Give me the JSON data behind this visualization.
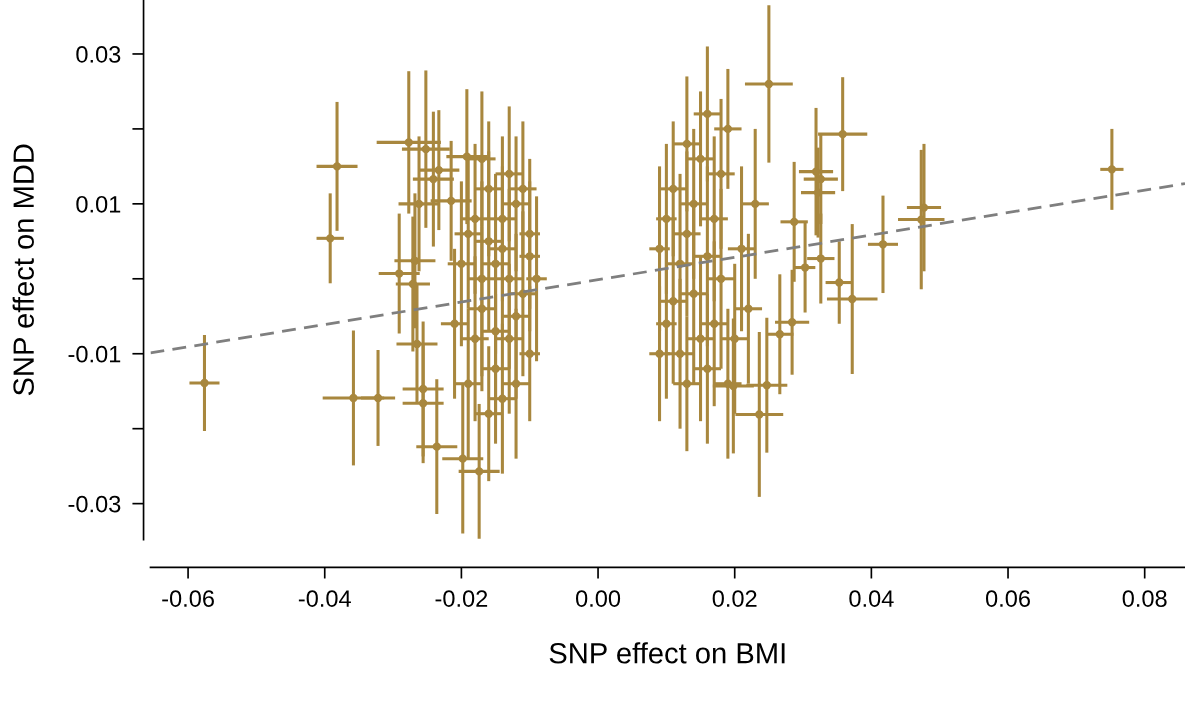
{
  "chart_data": {
    "type": "scatter",
    "xlabel": "SNP effect on BMI",
    "ylabel": "SNP effect on MDD",
    "xlim": [
      -0.0655,
      0.0859
    ],
    "ylim": [
      -0.0348,
      0.0372
    ],
    "xticks": [
      {
        "value": -0.06,
        "label": "-0.06"
      },
      {
        "value": -0.04,
        "label": "-0.04"
      },
      {
        "value": -0.02,
        "label": "-0.02"
      },
      {
        "value": 0.0,
        "label": "0.00"
      },
      {
        "value": 0.02,
        "label": "0.02"
      },
      {
        "value": 0.04,
        "label": "0.04"
      },
      {
        "value": 0.06,
        "label": "0.06"
      },
      {
        "value": 0.08,
        "label": "0.08"
      }
    ],
    "yticks": [
      {
        "value": -0.03,
        "label": "-0.03"
      },
      {
        "value": -0.02,
        "label": null
      },
      {
        "value": -0.01,
        "label": "-0.01"
      },
      {
        "value": 0.0,
        "label": null
      },
      {
        "value": 0.01,
        "label": "0.01"
      },
      {
        "value": 0.02,
        "label": null
      },
      {
        "value": 0.03,
        "label": "0.03"
      }
    ],
    "grid": false,
    "legend": false,
    "series": [
      {
        "marker": "circle",
        "color": "#a8873e",
        "x": [
          -0.0576,
          -0.0382,
          -0.0392,
          -0.0358,
          -0.0322,
          -0.0277,
          -0.0252,
          -0.0192,
          -0.0233,
          -0.0241,
          -0.0262,
          -0.0215,
          -0.0291,
          -0.0271,
          -0.0265,
          -0.0256,
          -0.0256,
          -0.0236,
          -0.0198,
          -0.0174,
          -0.0268,
          -0.018,
          -0.017,
          -0.016,
          -0.015,
          -0.014,
          -0.013,
          -0.012,
          -0.011,
          -0.01,
          -0.01,
          -0.019,
          -0.02,
          -0.021,
          -0.017,
          -0.015,
          -0.013,
          -0.012,
          -0.016,
          -0.014,
          -0.011,
          -0.009,
          -0.018,
          -0.019,
          -0.014,
          -0.013,
          -0.012,
          -0.016,
          -0.017,
          -0.015,
          -0.01,
          0.009,
          0.01,
          0.011,
          0.012,
          0.013,
          0.014,
          0.015,
          0.016,
          0.017,
          0.018,
          0.019,
          0.02,
          0.01,
          0.012,
          0.013,
          0.014,
          0.016,
          0.017,
          0.011,
          0.015,
          0.018,
          0.021,
          0.022,
          0.009,
          0.016,
          0.013,
          0.019,
          0.023,
          0.025,
          0.0236,
          0.0198,
          0.0752,
          0.0477,
          0.0473,
          0.0417,
          0.0372,
          0.0353,
          0.0358,
          0.0319,
          0.0326,
          0.0322,
          0.0303,
          0.0326,
          0.0287,
          0.0284,
          0.0266,
          0.0247
        ],
        "values": [
          -0.0139,
          0.015,
          0.0054,
          -0.0159,
          -0.0159,
          0.0182,
          0.0173,
          0.0163,
          0.0145,
          0.0133,
          0.01,
          0.0104,
          0.0007,
          -0.0007,
          -0.0087,
          -0.0147,
          -0.0166,
          -0.0224,
          -0.024,
          -0.0257,
          0.0024,
          0.008,
          -0.004,
          0.012,
          -0.012,
          0.004,
          -0.008,
          0.01,
          -0.002,
          0.006,
          -0.01,
          -0.014,
          0.002,
          -0.006,
          0.016,
          0.002,
          0.014,
          -0.014,
          -0.018,
          -0.016,
          0.012,
          0.0,
          -0.008,
          0.006,
          0.008,
          0.0,
          -0.005,
          0.005,
          0.0,
          -0.007,
          0.003,
          0.004,
          -0.006,
          0.012,
          -0.01,
          0.006,
          -0.002,
          0.016,
          -0.012,
          0.008,
          0.0,
          0.02,
          -0.008,
          0.008,
          0.002,
          -0.014,
          0.01,
          0.003,
          -0.006,
          -0.003,
          -0.008,
          0.014,
          0.004,
          -0.004,
          -0.01,
          0.022,
          0.018,
          -0.014,
          0.01,
          0.026,
          -0.0181,
          -0.0143,
          0.0146,
          0.0095,
          0.0079,
          0.0046,
          -0.0027,
          -0.0005,
          0.0193,
          0.0143,
          0.0133,
          0.0115,
          0.0015,
          0.0027,
          0.0076,
          -0.0058,
          -0.0074,
          -0.0142
        ],
        "errors": [
          0.0064,
          0.0086,
          0.006,
          0.009,
          0.0064,
          0.0095,
          0.0105,
          0.009,
          0.008,
          0.009,
          0.009,
          0.008,
          0.008,
          0.009,
          0.008,
          0.009,
          0.008,
          0.009,
          0.01,
          0.009,
          0.009,
          0.01,
          0.011,
          0.009,
          0.01,
          0.011,
          0.01,
          0.009,
          0.011,
          0.01,
          0.009,
          0.01,
          0.011,
          0.01,
          0.009,
          0.012,
          0.009,
          0.01,
          0.009,
          0.01,
          0.009,
          0.011,
          0.011,
          0.01,
          0.011,
          0.012,
          0.011,
          0.012,
          0.013,
          0.011,
          0.01,
          0.011,
          0.01,
          0.009,
          0.01,
          0.011,
          0.012,
          0.009,
          0.01,
          0.011,
          0.012,
          0.008,
          0.01,
          0.01,
          0.012,
          0.009,
          0.01,
          0.012,
          0.011,
          0.011,
          0.011,
          0.01,
          0.011,
          0.01,
          0.009,
          0.009,
          0.009,
          0.01,
          0.01,
          0.0105,
          0.011,
          0.009,
          0.0054,
          0.0085,
          0.0093,
          0.0065,
          0.01,
          0.0055,
          0.0076,
          0.0085,
          0.006,
          0.006,
          0.006,
          0.006,
          0.008,
          0.007,
          0.008,
          0.009
        ],
        "xerrors": [
          0.0022,
          0.003,
          0.002,
          0.0045,
          0.0025,
          0.0047,
          0.0035,
          0.003,
          0.003,
          0.003,
          0.003,
          0.003,
          0.003,
          0.0025,
          0.003,
          0.003,
          0.003,
          0.003,
          0.003,
          0.003,
          0.003,
          0.002,
          0.002,
          0.002,
          0.002,
          0.002,
          0.002,
          0.002,
          0.002,
          0.0015,
          0.0015,
          0.002,
          0.002,
          0.002,
          0.002,
          0.002,
          0.002,
          0.002,
          0.002,
          0.002,
          0.002,
          0.0015,
          0.002,
          0.002,
          0.002,
          0.002,
          0.002,
          0.002,
          0.002,
          0.002,
          0.0015,
          0.0015,
          0.0015,
          0.002,
          0.002,
          0.002,
          0.002,
          0.002,
          0.002,
          0.002,
          0.002,
          0.002,
          0.002,
          0.0015,
          0.002,
          0.002,
          0.002,
          0.002,
          0.002,
          0.002,
          0.002,
          0.002,
          0.002,
          0.002,
          0.0015,
          0.002,
          0.002,
          0.002,
          0.002,
          0.0035,
          0.0035,
          0.003,
          0.0017,
          0.0025,
          0.0034,
          0.0022,
          0.0037,
          0.002,
          0.0036,
          0.0025,
          0.0025,
          0.0025,
          0.0015,
          0.002,
          0.002,
          0.0025,
          0.002,
          0.003
        ]
      },
      {
        "type": "line",
        "color": "#7f7f7f",
        "line_style": "dashed",
        "x": [
          -0.0655,
          0.0859
        ],
        "values": [
          -0.0099,
          0.0127
        ]
      }
    ]
  }
}
